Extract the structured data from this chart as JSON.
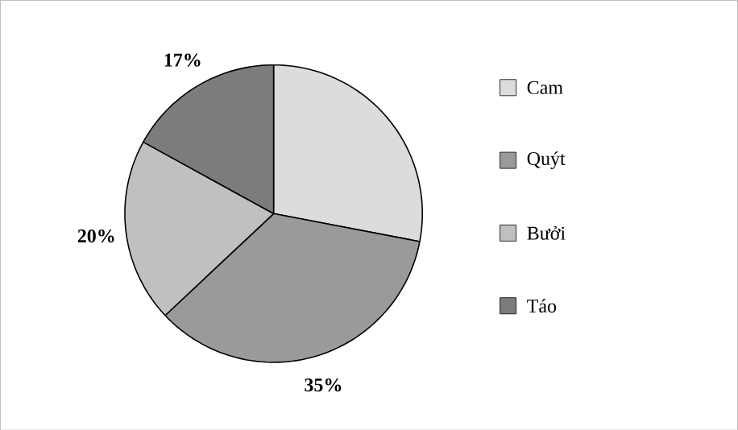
{
  "chart_data": {
    "type": "pie",
    "categories": [
      "Cam",
      "Quýt",
      "Bưởi",
      "Táo"
    ],
    "values": [
      28,
      35,
      20,
      17
    ],
    "colors": [
      "#dcdcdc",
      "#9a9a9a",
      "#c0c0c0",
      "#7c7c7c"
    ],
    "value_labels": [
      null,
      "35%",
      "20%",
      "17%"
    ],
    "legend": "right"
  }
}
